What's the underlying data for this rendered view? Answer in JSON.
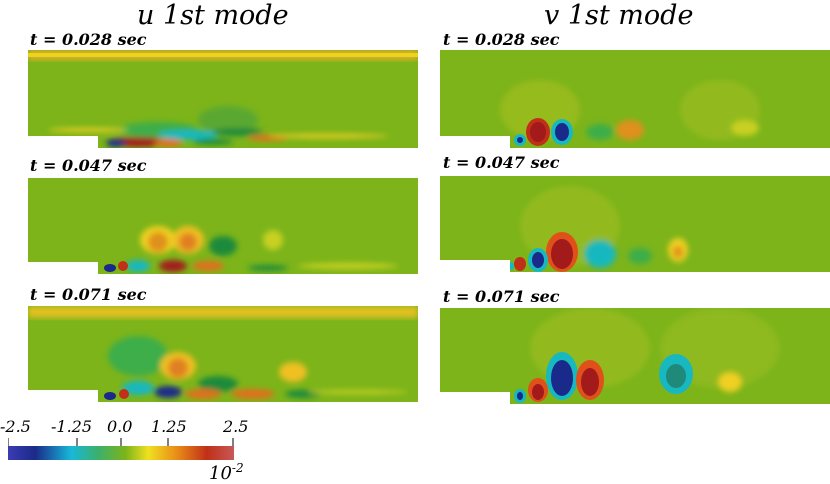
{
  "columns": [
    {
      "title": "u 1st mode"
    },
    {
      "title": "v 1st mode"
    }
  ],
  "snapshots": [
    {
      "time_label": "t = 0.028 sec"
    },
    {
      "time_label": "t = 0.047 sec"
    },
    {
      "time_label": "t = 0.071 sec"
    }
  ],
  "colorbar": {
    "ticks": [
      "-2.5",
      "-1.25",
      "0.0",
      "1.25",
      "2.5"
    ],
    "exponent_base": "10",
    "exponent_power": "-2",
    "colors": [
      "#3b3bb2",
      "#1a2a8a",
      "#18b8d8",
      "#3cb06a",
      "#7cb41a",
      "#f0e020",
      "#e88a18",
      "#c03018",
      "#c85858"
    ]
  },
  "colors": {
    "background_field": "#7cb41a",
    "positive_strong": "#a21a1a",
    "positive": "#e0701a",
    "weak_positive": "#f0d020",
    "negative": "#18b8c0",
    "negative_strong": "#1a2a8a",
    "dark_green": "#1f8a3a"
  }
}
